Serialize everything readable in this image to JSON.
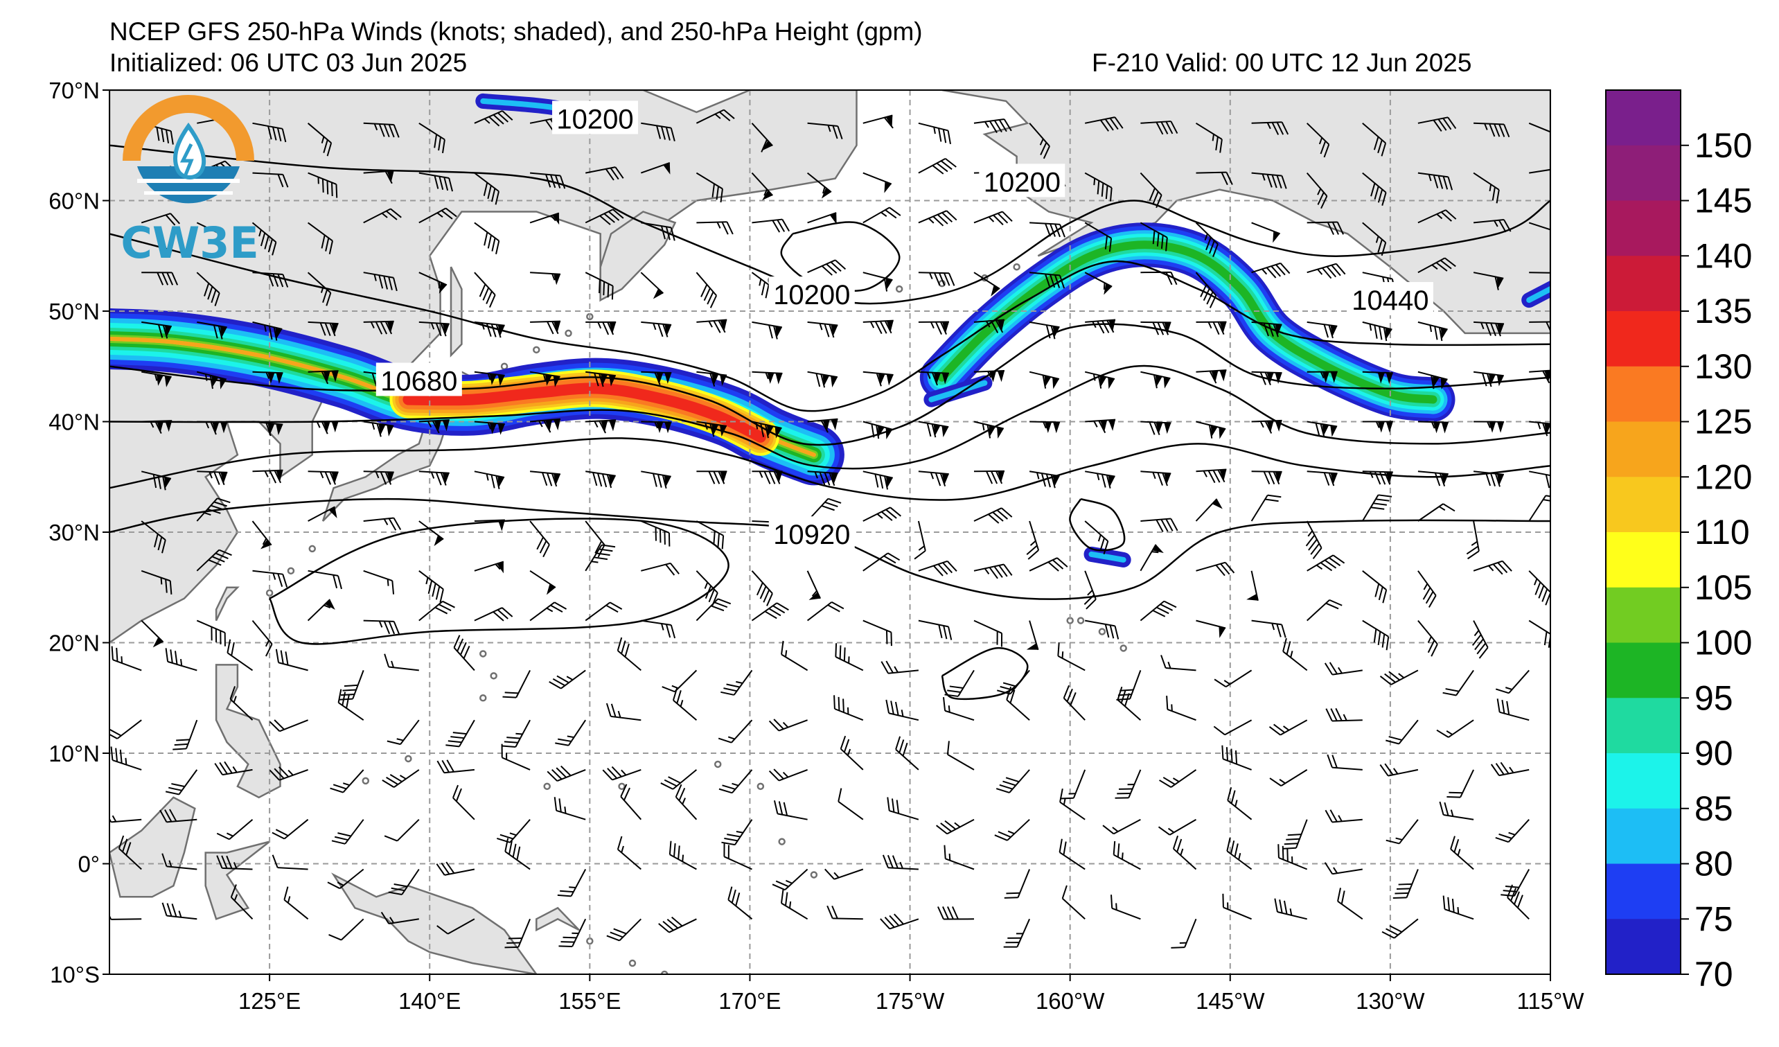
{
  "header": {
    "title": "NCEP GFS 250-hPa Winds (knots; shaded), and 250-hPa Height (gpm)",
    "initialized": "Initialized: 06 UTC 03 Jun 2025",
    "valid": "F-210  Valid: 00 UTC 12 Jun 2025"
  },
  "logo": {
    "text": "CW3E",
    "colors": {
      "orange": "#F29A2E",
      "blue": "#1E7FB4",
      "teal": "#2E9CC8"
    }
  },
  "axes": {
    "lat_labels": [
      "70°N",
      "60°N",
      "50°N",
      "40°N",
      "30°N",
      "20°N",
      "10°N",
      "0°",
      "10°S"
    ],
    "lon_labels": [
      "125°E",
      "140°E",
      "155°E",
      "170°E",
      "175°W",
      "160°W",
      "145°W",
      "130°W",
      "115°W"
    ]
  },
  "contour_labels": [
    {
      "text": "10200",
      "lon": 155.5,
      "lat": 67.4
    },
    {
      "text": "10200",
      "lon": -164.5,
      "lat": 61.7
    },
    {
      "text": "10200",
      "lon": 175.8,
      "lat": 51.5
    },
    {
      "text": "10680",
      "lon": 139.0,
      "lat": 43.7
    },
    {
      "text": "10920",
      "lon": 175.8,
      "lat": 29.8
    },
    {
      "text": "10440",
      "lon": -130.0,
      "lat": 51.0
    }
  ],
  "colorbar": {
    "levels": [
      "150",
      "145",
      "140",
      "135",
      "130",
      "125",
      "120",
      "110",
      "105",
      "100",
      "95",
      "90",
      "85",
      "80",
      "75",
      "70"
    ],
    "colors": [
      "#7A1F8C",
      "#8E1E78",
      "#A8195E",
      "#CC1B38",
      "#F0281C",
      "#FA7A22",
      "#F7A51C",
      "#F8C81E",
      "#FFFF1A",
      "#72CC22",
      "#1DB525",
      "#1FDAA0",
      "#1CF3EA",
      "#1DBEF5",
      "#1E3EF3",
      "#2221C8"
    ]
  },
  "legend_colors": {
    "land": "#E3E3E3",
    "coast": "#707070",
    "grid": "#9A9A9A",
    "contour": "#000000"
  }
}
